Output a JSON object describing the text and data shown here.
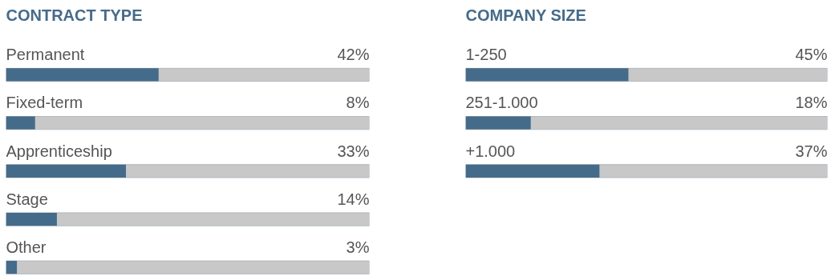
{
  "chart_data": [
    {
      "type": "bar",
      "orientation": "horizontal",
      "title": "CONTRACT TYPE",
      "categories": [
        "Permanent",
        "Fixed-term",
        "Apprenticeship",
        "Stage",
        "Other"
      ],
      "values": [
        42,
        8,
        33,
        14,
        3
      ],
      "value_labels": [
        "42%",
        "8%",
        "33%",
        "14%",
        "3%"
      ],
      "color": "#456b8a",
      "xlim": [
        0,
        100
      ],
      "tick_labels": false,
      "grid": false
    },
    {
      "type": "bar",
      "orientation": "horizontal",
      "title": "COMPANY SIZE",
      "categories": [
        "1-250",
        "251-1.000",
        "+1.000"
      ],
      "values": [
        45,
        18,
        37
      ],
      "value_labels": [
        "45%",
        "18%",
        "37%"
      ],
      "color": "#456b8a",
      "xlim": [
        0,
        100
      ],
      "tick_labels": false,
      "grid": false
    }
  ]
}
